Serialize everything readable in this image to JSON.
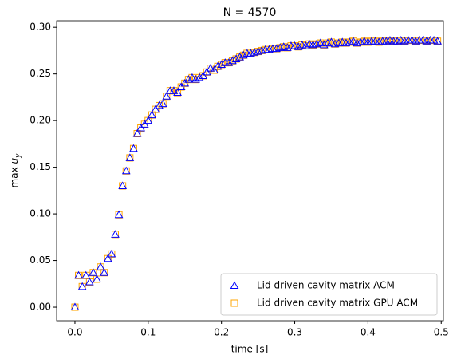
{
  "chart_data": {
    "type": "scatter",
    "title": "N = 4570",
    "xlabel": "time [s]",
    "ylabel": [
      "max ",
      "u",
      "y"
    ],
    "x": [
      0.0,
      0.005,
      0.01,
      0.015,
      0.02,
      0.025,
      0.03,
      0.035,
      0.04,
      0.045,
      0.05,
      0.055,
      0.06,
      0.065,
      0.07,
      0.075,
      0.08,
      0.085,
      0.09,
      0.095,
      0.1,
      0.105,
      0.11,
      0.115,
      0.12,
      0.125,
      0.13,
      0.135,
      0.14,
      0.145,
      0.15,
      0.155,
      0.16,
      0.165,
      0.17,
      0.175,
      0.18,
      0.185,
      0.19,
      0.195,
      0.2,
      0.205,
      0.21,
      0.215,
      0.22,
      0.225,
      0.23,
      0.235,
      0.24,
      0.245,
      0.25,
      0.255,
      0.26,
      0.265,
      0.27,
      0.275,
      0.28,
      0.285,
      0.29,
      0.295,
      0.3,
      0.305,
      0.31,
      0.315,
      0.32,
      0.325,
      0.33,
      0.335,
      0.34,
      0.345,
      0.35,
      0.355,
      0.36,
      0.365,
      0.37,
      0.375,
      0.38,
      0.385,
      0.39,
      0.395,
      0.4,
      0.405,
      0.41,
      0.415,
      0.42,
      0.425,
      0.43,
      0.435,
      0.44,
      0.445,
      0.45,
      0.455,
      0.46,
      0.465,
      0.47,
      0.475,
      0.48,
      0.485,
      0.49,
      0.495
    ],
    "series": [
      {
        "name": "Lid driven cavity matrix ACM",
        "color": "#0000ff",
        "marker": "triangle",
        "values": [
          0.0,
          0.034,
          0.022,
          0.034,
          0.027,
          0.037,
          0.03,
          0.043,
          0.037,
          0.052,
          0.057,
          0.078,
          0.099,
          0.13,
          0.146,
          0.16,
          0.17,
          0.186,
          0.192,
          0.196,
          0.2,
          0.206,
          0.212,
          0.216,
          0.218,
          0.226,
          0.232,
          0.232,
          0.23,
          0.236,
          0.24,
          0.244,
          0.246,
          0.244,
          0.246,
          0.248,
          0.252,
          0.256,
          0.254,
          0.258,
          0.26,
          0.262,
          0.262,
          0.264,
          0.266,
          0.268,
          0.27,
          0.272,
          0.272,
          0.273,
          0.274,
          0.275,
          0.276,
          0.276,
          0.277,
          0.277,
          0.278,
          0.279,
          0.278,
          0.28,
          0.28,
          0.279,
          0.281,
          0.28,
          0.282,
          0.281,
          0.282,
          0.283,
          0.281,
          0.283,
          0.284,
          0.282,
          0.283,
          0.284,
          0.283,
          0.284,
          0.285,
          0.283,
          0.284,
          0.285,
          0.284,
          0.285,
          0.285,
          0.284,
          0.285,
          0.285,
          0.286,
          0.285,
          0.285,
          0.286,
          0.285,
          0.286,
          0.286,
          0.285,
          0.286,
          0.286,
          0.285,
          0.286,
          0.286,
          0.285
        ]
      },
      {
        "name": "Lid driven cavity matrix GPU ACM",
        "color": "#ffa500",
        "marker": "square",
        "values": [
          0.0,
          0.034,
          0.022,
          0.034,
          0.027,
          0.037,
          0.03,
          0.043,
          0.037,
          0.052,
          0.057,
          0.078,
          0.099,
          0.13,
          0.146,
          0.16,
          0.17,
          0.186,
          0.192,
          0.196,
          0.2,
          0.206,
          0.212,
          0.216,
          0.218,
          0.226,
          0.232,
          0.232,
          0.23,
          0.236,
          0.24,
          0.244,
          0.246,
          0.244,
          0.246,
          0.248,
          0.252,
          0.256,
          0.254,
          0.258,
          0.26,
          0.262,
          0.262,
          0.264,
          0.266,
          0.268,
          0.27,
          0.272,
          0.272,
          0.273,
          0.274,
          0.275,
          0.276,
          0.276,
          0.277,
          0.277,
          0.278,
          0.279,
          0.278,
          0.28,
          0.28,
          0.279,
          0.281,
          0.28,
          0.282,
          0.281,
          0.282,
          0.283,
          0.281,
          0.283,
          0.284,
          0.282,
          0.283,
          0.284,
          0.283,
          0.284,
          0.285,
          0.283,
          0.284,
          0.285,
          0.284,
          0.285,
          0.285,
          0.284,
          0.285,
          0.285,
          0.286,
          0.285,
          0.285,
          0.286,
          0.285,
          0.286,
          0.286,
          0.285,
          0.286,
          0.286,
          0.285,
          0.286,
          0.286,
          0.285
        ]
      }
    ],
    "xlim": [
      -0.025,
      0.503
    ],
    "ylim": [
      -0.0145,
      0.307
    ],
    "xticks": [
      {
        "value": 0,
        "label": "0.0"
      },
      0.1,
      0.2,
      0.3,
      0.4,
      0.5
    ],
    "yticks": [
      {
        "value": 0,
        "label": "0.00"
      },
      {
        "value": 0.05,
        "label": "0.05"
      },
      {
        "value": 0.1,
        "label": "0.10"
      },
      {
        "value": 0.15,
        "label": "0.15"
      },
      {
        "value": 0.2,
        "label": "0.20"
      },
      {
        "value": 0.25,
        "label": "0.25"
      },
      {
        "value": 0.3,
        "label": "0.30"
      }
    ],
    "legend": "lower right",
    "grid": false
  }
}
